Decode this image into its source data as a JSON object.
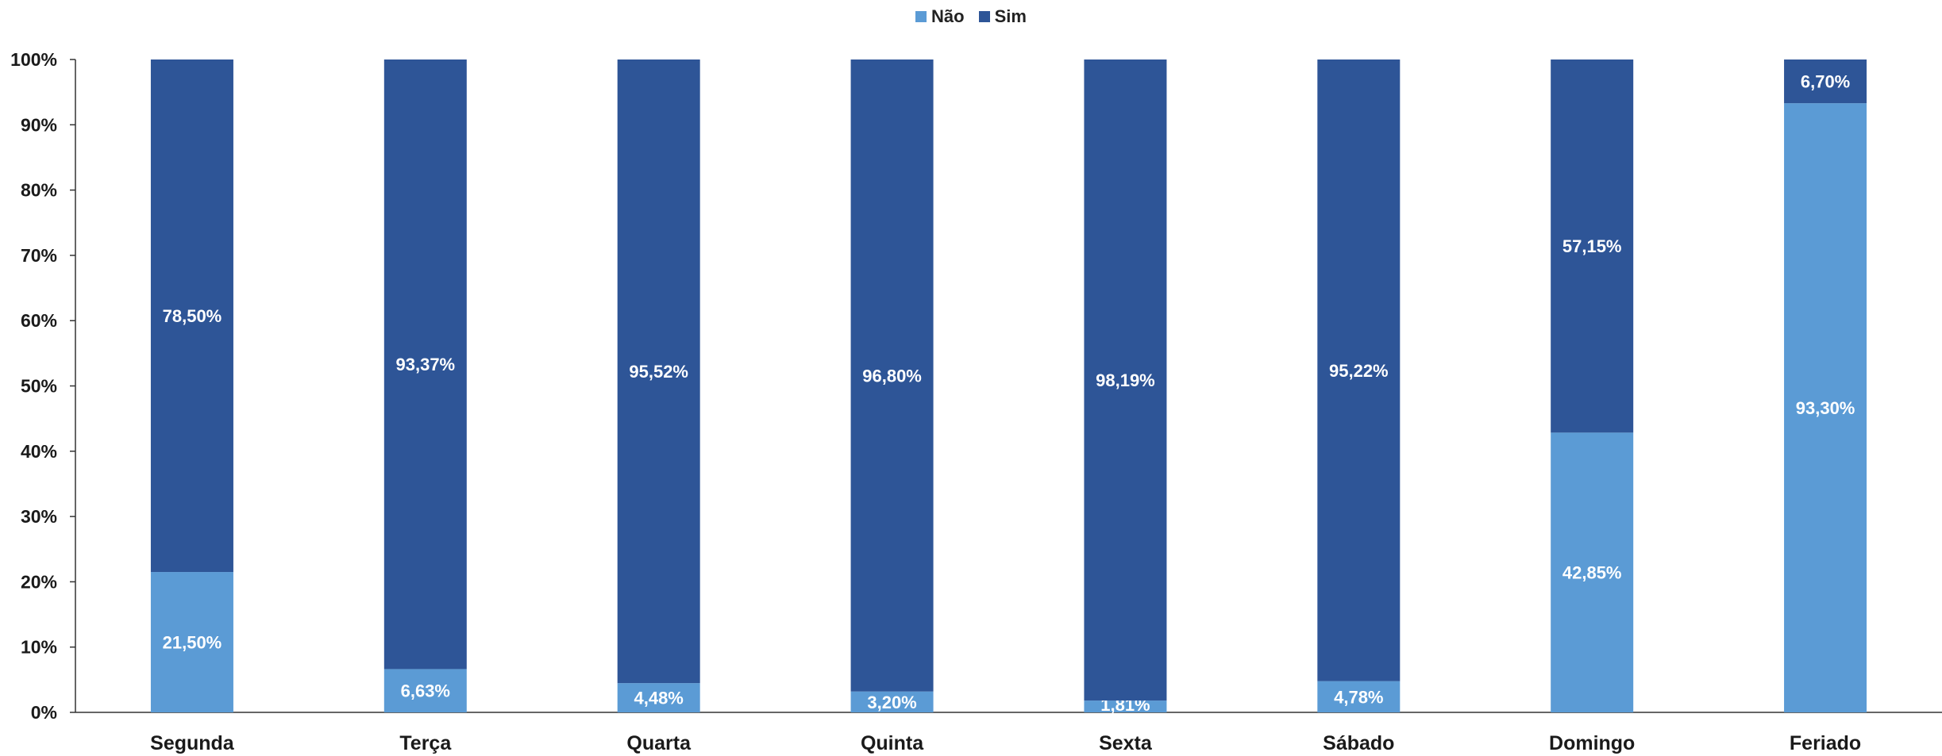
{
  "chart_data": {
    "type": "bar",
    "stacked": true,
    "percent": true,
    "categories": [
      "Segunda",
      "Terça",
      "Quarta",
      "Quinta",
      "Sexta",
      "Sábado",
      "Domingo",
      "Feriado"
    ],
    "series": [
      {
        "name": "Não",
        "color": "#5b9bd5",
        "values": [
          21.5,
          6.63,
          4.48,
          3.2,
          1.81,
          4.78,
          42.85,
          93.3
        ],
        "labels": [
          "21,50%",
          "6,63%",
          "4,48%",
          "3,20%",
          "1,81%",
          "4,78%",
          "42,85%",
          "93,30%"
        ]
      },
      {
        "name": "Sim",
        "color": "#2e5597",
        "values": [
          78.5,
          93.37,
          95.52,
          96.8,
          98.19,
          95.22,
          57.15,
          6.7
        ],
        "labels": [
          "78,50%",
          "93,37%",
          "95,52%",
          "96,80%",
          "98,19%",
          "95,22%",
          "57,15%",
          "6,70%"
        ]
      }
    ],
    "yticks": [
      "0%",
      "10%",
      "20%",
      "30%",
      "40%",
      "50%",
      "60%",
      "70%",
      "80%",
      "90%",
      "100%"
    ],
    "ylim": [
      0,
      100
    ],
    "grid": false,
    "legend_position": "top-center",
    "title": "",
    "xlabel": "",
    "ylabel": ""
  }
}
